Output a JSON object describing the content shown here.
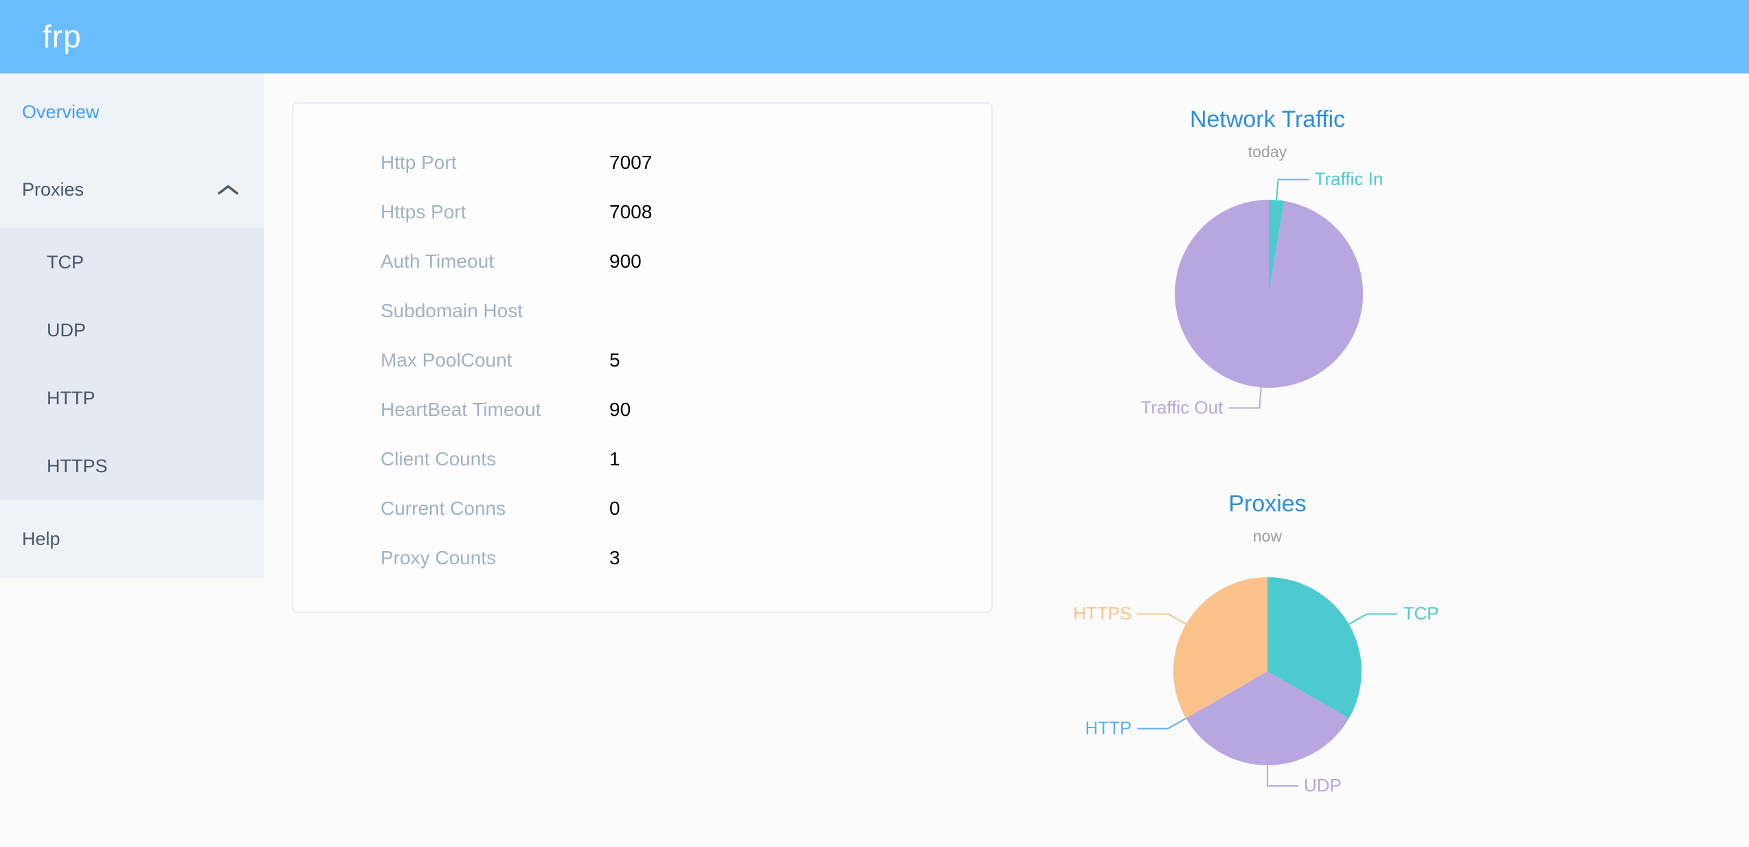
{
  "header": {
    "logo": "frp"
  },
  "sidebar": {
    "overview": "Overview",
    "proxies": "Proxies",
    "tcp": "TCP",
    "udp": "UDP",
    "http": "HTTP",
    "https": "HTTPS",
    "help": "Help"
  },
  "server_info": {
    "rows": [
      {
        "label": "Http Port",
        "value": "7007"
      },
      {
        "label": "Https Port",
        "value": "7008"
      },
      {
        "label": "Auth Timeout",
        "value": "900"
      },
      {
        "label": "Subdomain Host",
        "value": ""
      },
      {
        "label": "Max PoolCount",
        "value": "5"
      },
      {
        "label": "HeartBeat Timeout",
        "value": "90"
      },
      {
        "label": "Client Counts",
        "value": "1"
      },
      {
        "label": "Current Conns",
        "value": "0"
      },
      {
        "label": "Proxy Counts",
        "value": "3"
      }
    ]
  },
  "chart_data": [
    {
      "type": "pie",
      "title": "Network Traffic",
      "subtitle": "today",
      "start_angle_deg": 0,
      "label_position": "outside",
      "values_are": "percent_estimate",
      "series": [
        {
          "name": "Traffic In",
          "value": 2.6,
          "color": "#4ccacf"
        },
        {
          "name": "Traffic Out",
          "value": 97.4,
          "color": "#b7a6e0"
        }
      ]
    },
    {
      "type": "pie",
      "title": "Proxies",
      "subtitle": "now",
      "start_angle_deg": 0,
      "label_position": "outside",
      "values_are": "proxy_counts",
      "series": [
        {
          "name": "TCP",
          "value": 1,
          "color": "#4ccacf"
        },
        {
          "name": "UDP",
          "value": 1,
          "color": "#b7a6e0"
        },
        {
          "name": "HTTP",
          "value": 0,
          "color": "#5ab1ef"
        },
        {
          "name": "HTTPS",
          "value": 1,
          "color": "#fac28a"
        }
      ]
    }
  ],
  "colors": {
    "header_background": "#6abdfc",
    "sidebar_background": "#eff2f7",
    "submenu_background": "#e5e9f2",
    "active_menu_text": "#449ff9",
    "menu_text": "#48576a",
    "chart_title_blue": "#2e8fd8",
    "card_label_gray": "#a3b0c5"
  }
}
